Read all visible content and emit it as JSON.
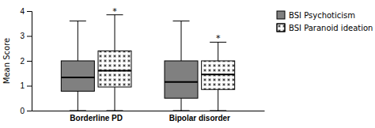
{
  "chart_data": {
    "type": "box",
    "categories": [
      "Borderline PD",
      "Bipolar disorder"
    ],
    "ylabel": "Mean Score",
    "ylim": [
      0,
      4
    ],
    "yticks": [
      0,
      1,
      2,
      3,
      4
    ],
    "grid": false,
    "legend": "right",
    "series": [
      {
        "name": "BSI Psychoticism",
        "color": "#808080",
        "q1": [
          0.78,
          0.5
        ],
        "median": [
          1.33,
          1.15
        ],
        "q3": [
          2.0,
          2.0
        ],
        "whislo": [
          0.0,
          0.0
        ],
        "whishi": [
          3.6,
          3.6
        ]
      },
      {
        "name": "BSI Paranoid ideation",
        "color": "#ffffff",
        "q1": [
          0.95,
          0.85
        ],
        "median": [
          1.6,
          1.45
        ],
        "q3": [
          2.4,
          2.0
        ],
        "whislo": [
          0.0,
          0.0
        ],
        "whishi": [
          3.85,
          2.75
        ],
        "annotations": [
          "*",
          "*"
        ]
      }
    ]
  }
}
